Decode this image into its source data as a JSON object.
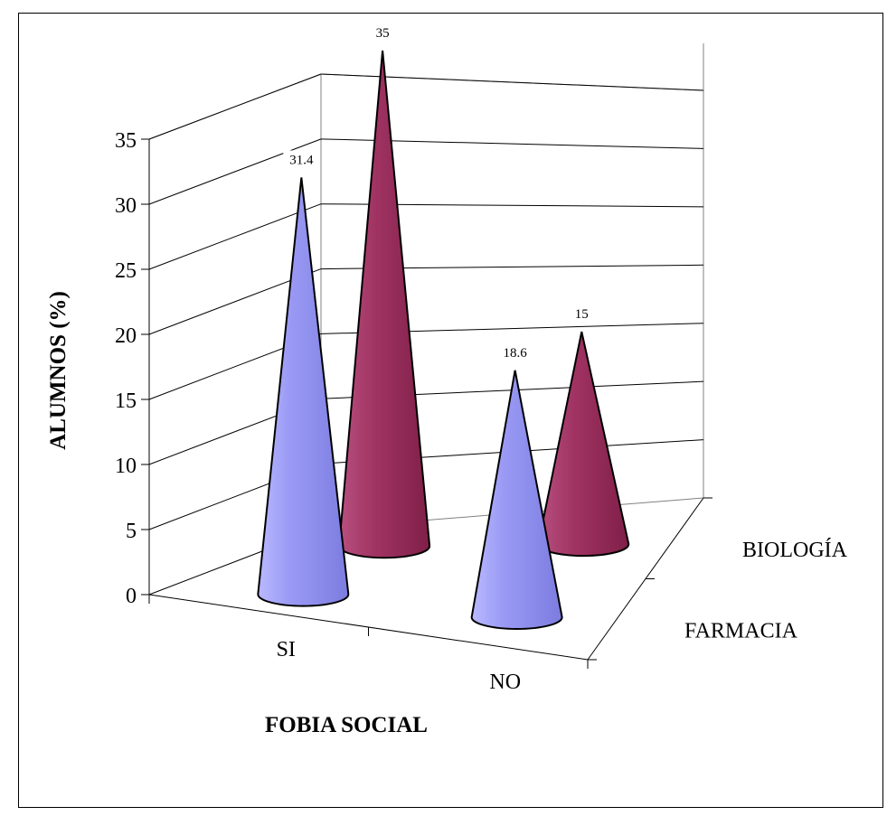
{
  "chart_data": {
    "type": "bar",
    "shape": "3d-cone",
    "xlabel": "FOBIA SOCIAL",
    "ylabel": "ALUMNOS (%)",
    "categories": [
      "SI",
      "NO"
    ],
    "series": [
      {
        "name": "FARMACIA",
        "values": [
          31.4,
          18.6
        ],
        "color": "#8f8ff0"
      },
      {
        "name": "BIOLOGÍA",
        "values": [
          35,
          15
        ],
        "color": "#9e2e5e"
      }
    ],
    "ylim": [
      0,
      35
    ],
    "yticks": [
      0,
      5,
      10,
      15,
      20,
      25,
      30,
      35
    ],
    "data_labels": [
      [
        "31.4",
        "18.6"
      ],
      [
        "35",
        "15"
      ]
    ],
    "grid": true
  }
}
